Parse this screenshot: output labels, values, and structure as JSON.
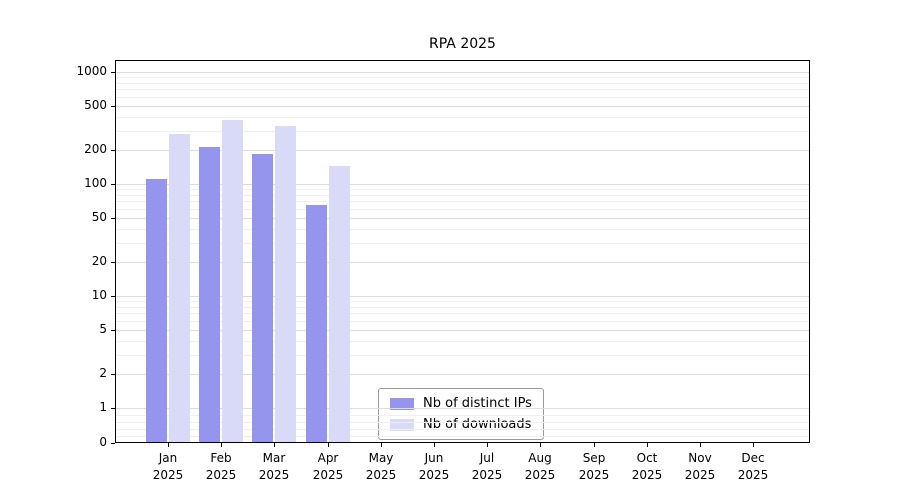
{
  "chart_data": {
    "type": "bar",
    "title": "RPA 2025",
    "categories": [
      "Jan 2025",
      "Feb 2025",
      "Mar 2025",
      "Apr 2025",
      "May 2025",
      "Jun 2025",
      "Jul 2025",
      "Aug 2025",
      "Sep 2025",
      "Oct 2025",
      "Nov 2025",
      "Dec 2025"
    ],
    "series": [
      {
        "name": "Nb of distinct IPs",
        "color": "#9595ee",
        "values": [
          110,
          215,
          185,
          65,
          null,
          null,
          null,
          null,
          null,
          null,
          null,
          null
        ]
      },
      {
        "name": "Nb of downloads",
        "color": "#d9d9f8",
        "values": [
          280,
          370,
          330,
          145,
          null,
          null,
          null,
          null,
          null,
          null,
          null,
          null
        ]
      }
    ],
    "yscale": "symlog",
    "yticks": [
      0,
      1,
      2,
      5,
      10,
      20,
      50,
      100,
      200,
      500,
      1000
    ],
    "ylim": [
      0,
      1300
    ],
    "xlabel": "",
    "ylabel": "",
    "grid": true,
    "legend_position": "lower center"
  }
}
